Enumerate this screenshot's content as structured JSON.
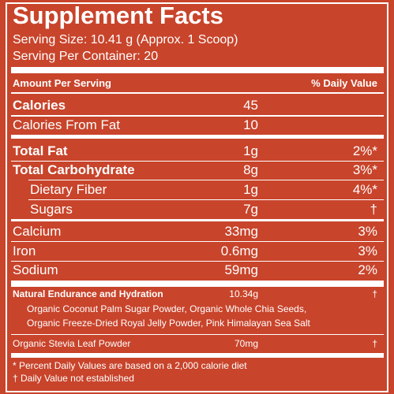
{
  "header": {
    "title": "Supplement Facts",
    "serving_size": "Serving Size: 10.41 g (Approx. 1 Scoop)",
    "servings": "Serving Per Container: 20"
  },
  "columns": {
    "amount": "Amount Per Serving",
    "daily_value": "% Daily Value"
  },
  "rows": [
    [
      "Calories",
      "45",
      ""
    ],
    [
      "Calories From Fat",
      "10",
      ""
    ],
    [
      "Total Fat",
      "1g",
      "2%*"
    ],
    [
      "Total Carbohydrate",
      "8g",
      "3%*"
    ],
    [
      "Dietary Fiber",
      "1g",
      "4%*"
    ],
    [
      "Sugars",
      "7g",
      "†"
    ],
    [
      "Calcium",
      "33mg",
      "3%"
    ],
    [
      "Iron",
      "0.6mg",
      "3%"
    ],
    [
      "Sodium",
      "59mg",
      "2%"
    ]
  ],
  "blend": {
    "name": "Natural Endurance and Hydration",
    "amount": "10.34g",
    "daily_value": "†",
    "ingredients": [
      "Organic Coconut Palm Sugar Powder, Organic Whole Chia Seeds,",
      "Organic Freeze-Dried Royal Jelly Powder, Pink Himalayan Sea Salt"
    ]
  },
  "stevia": {
    "name": "Organic Stevia Leaf Powder",
    "amount": "70mg",
    "daily_value": "†"
  },
  "footnotes": [
    "* Percent Daily Values are based on a 2,000 calorie diet",
    "† Daily Value not established"
  ]
}
